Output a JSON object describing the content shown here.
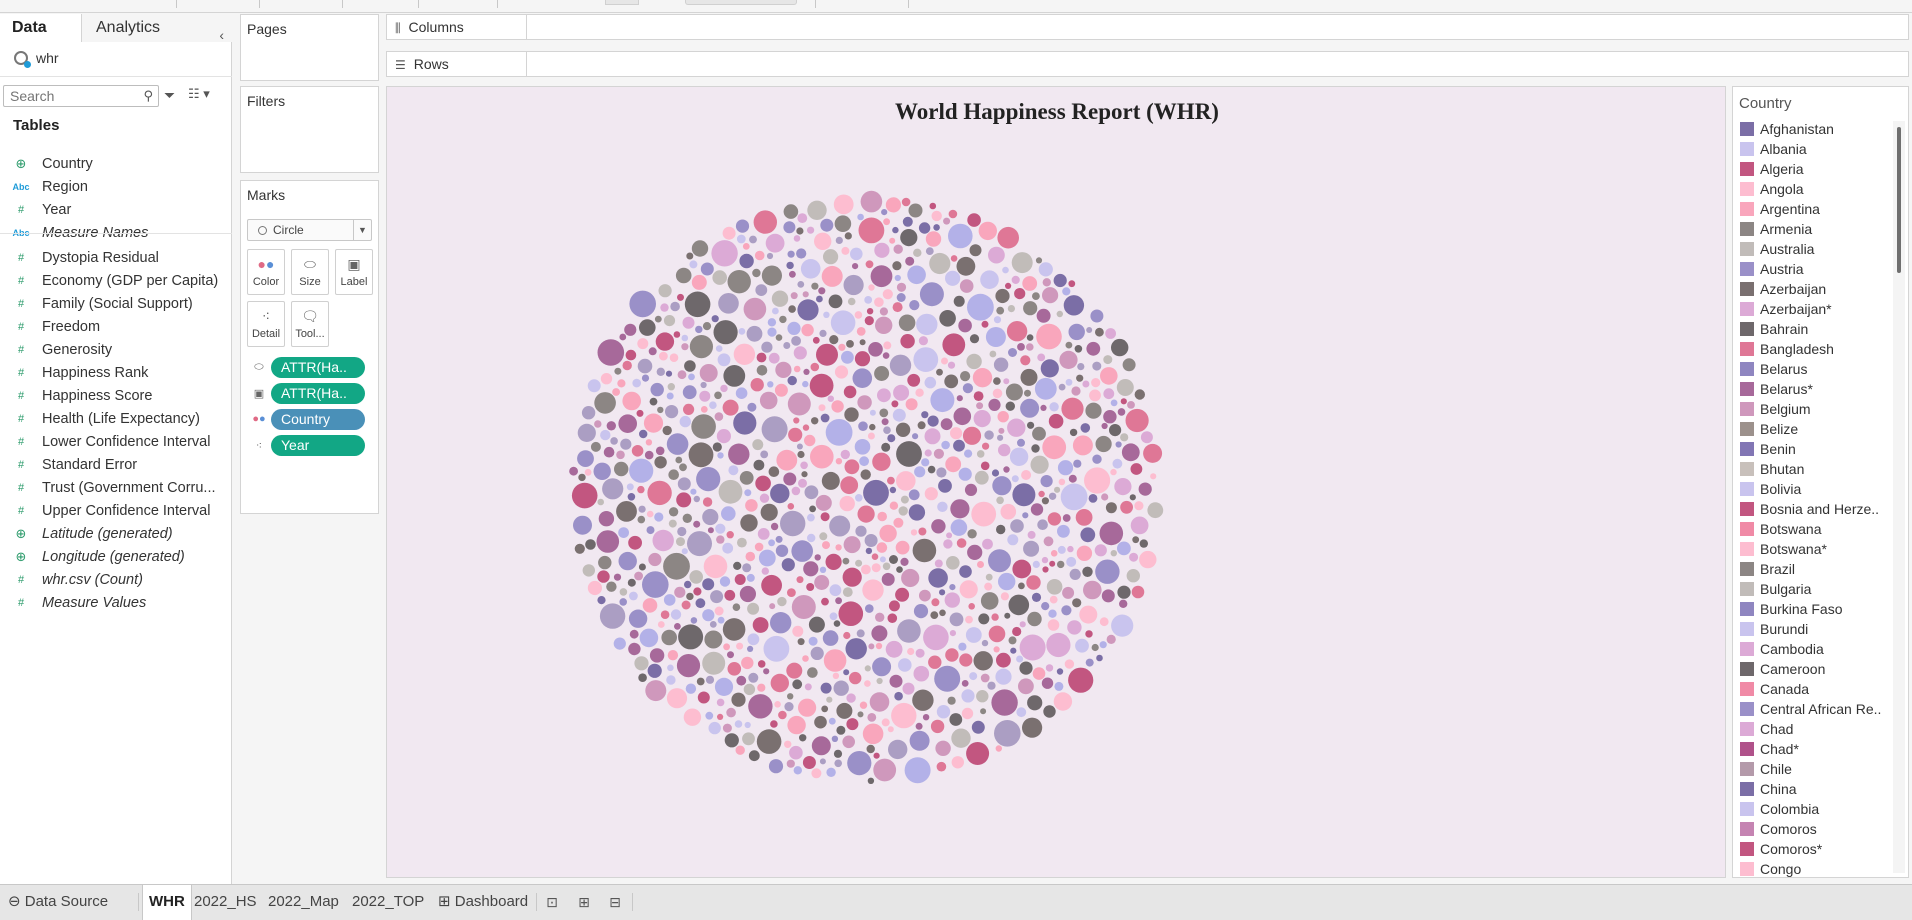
{
  "data_pane": {
    "tabs": {
      "data": "Data",
      "analytics": "Analytics"
    },
    "datasource": "whr",
    "search_placeholder": "Search",
    "tables_header": "Tables",
    "dimensions": [
      {
        "name": "Country",
        "type": "globe",
        "italic": false
      },
      {
        "name": "Region",
        "type": "abc",
        "italic": false
      },
      {
        "name": "Year",
        "type": "num",
        "italic": false
      },
      {
        "name": "Measure Names",
        "type": "abc",
        "italic": true
      }
    ],
    "measures": [
      {
        "name": "Dystopia Residual",
        "type": "num",
        "italic": false
      },
      {
        "name": "Economy (GDP per Capita)",
        "type": "num",
        "italic": false
      },
      {
        "name": "Family (Social Support)",
        "type": "num",
        "italic": false
      },
      {
        "name": "Freedom",
        "type": "num",
        "italic": false
      },
      {
        "name": "Generosity",
        "type": "num",
        "italic": false
      },
      {
        "name": "Happiness Rank",
        "type": "num",
        "italic": false
      },
      {
        "name": "Happiness Score",
        "type": "num",
        "italic": false
      },
      {
        "name": "Health (Life Expectancy)",
        "type": "num",
        "italic": false
      },
      {
        "name": "Lower Confidence Interval",
        "type": "num",
        "italic": false
      },
      {
        "name": "Standard Error",
        "type": "num",
        "italic": false
      },
      {
        "name": "Trust (Government Corru...",
        "type": "num",
        "italic": false
      },
      {
        "name": "Upper Confidence Interval",
        "type": "num",
        "italic": false
      },
      {
        "name": "Latitude (generated)",
        "type": "globe",
        "italic": true
      },
      {
        "name": "Longitude (generated)",
        "type": "globe",
        "italic": true
      },
      {
        "name": "whr.csv (Count)",
        "type": "num",
        "italic": true
      },
      {
        "name": "Measure Values",
        "type": "num",
        "italic": true
      }
    ]
  },
  "shelves": {
    "pages": "Pages",
    "filters": "Filters",
    "marks": "Marks",
    "mark_type": "Circle",
    "mark_buttons": {
      "color": "Color",
      "size": "Size",
      "label": "Label",
      "detail": "Detail",
      "tooltip": "Tool..."
    },
    "mark_pills": [
      {
        "label": "ATTR(Ha..",
        "role": "size",
        "color": "green"
      },
      {
        "label": "ATTR(Ha..",
        "role": "label",
        "color": "green"
      },
      {
        "label": "Country",
        "role": "color",
        "color": "blue"
      },
      {
        "label": "Year",
        "role": "detail",
        "color": "green"
      }
    ],
    "columns": "Columns",
    "rows": "Rows"
  },
  "viz": {
    "title": "World Happiness Report (WHR)",
    "background": "#f1e8f1",
    "palette": [
      "#7b6ea6",
      "#c9c4ee",
      "#c25680",
      "#fdbdd0",
      "#f9a6bc",
      "#8c8684",
      "#c1bcb9",
      "#9a90c8",
      "#7a7070",
      "#dcaad6",
      "#df7796",
      "#a7699a",
      "#cf98bc",
      "#b3b1e8",
      "#ab9ec3",
      "#6e686b"
    ]
  },
  "legend": {
    "title": "Country",
    "items": [
      {
        "name": "Afghanistan",
        "color": "#7b6ea6"
      },
      {
        "name": "Albania",
        "color": "#c9c4ee"
      },
      {
        "name": "Algeria",
        "color": "#c25680"
      },
      {
        "name": "Angola",
        "color": "#fdbdd0"
      },
      {
        "name": "Argentina",
        "color": "#f9a6bc"
      },
      {
        "name": "Armenia",
        "color": "#8c8684"
      },
      {
        "name": "Australia",
        "color": "#c1bcb9"
      },
      {
        "name": "Austria",
        "color": "#9a90c8"
      },
      {
        "name": "Azerbaijan",
        "color": "#7a7070"
      },
      {
        "name": "Azerbaijan*",
        "color": "#dcaad6"
      },
      {
        "name": "Bahrain",
        "color": "#6e686b"
      },
      {
        "name": "Bangladesh",
        "color": "#df7796"
      },
      {
        "name": "Belarus",
        "color": "#8f86c0"
      },
      {
        "name": "Belarus*",
        "color": "#a7699a"
      },
      {
        "name": "Belgium",
        "color": "#cf98bc"
      },
      {
        "name": "Belize",
        "color": "#9c918c"
      },
      {
        "name": "Benin",
        "color": "#8276b4"
      },
      {
        "name": "Bhutan",
        "color": "#c8c0bb"
      },
      {
        "name": "Bolivia",
        "color": "#c9c4ee"
      },
      {
        "name": "Bosnia and Herze..",
        "color": "#c25680"
      },
      {
        "name": "Botswana",
        "color": "#f08aa6"
      },
      {
        "name": "Botswana*",
        "color": "#fdbdd0"
      },
      {
        "name": "Brazil",
        "color": "#8c8684"
      },
      {
        "name": "Bulgaria",
        "color": "#c1bcb9"
      },
      {
        "name": "Burkina Faso",
        "color": "#8f86c0"
      },
      {
        "name": "Burundi",
        "color": "#c9c4ee"
      },
      {
        "name": "Cambodia",
        "color": "#dcaad6"
      },
      {
        "name": "Cameroon",
        "color": "#6e686b"
      },
      {
        "name": "Canada",
        "color": "#f08aa6"
      },
      {
        "name": "Central African Re..",
        "color": "#9a90c8"
      },
      {
        "name": "Chad",
        "color": "#dcaad6"
      },
      {
        "name": "Chad*",
        "color": "#b0528a"
      },
      {
        "name": "Chile",
        "color": "#b49aaa"
      },
      {
        "name": "China",
        "color": "#7b6ea6"
      },
      {
        "name": "Colombia",
        "color": "#c9c4ee"
      },
      {
        "name": "Comoros",
        "color": "#c584b2"
      },
      {
        "name": "Comoros*",
        "color": "#c25680"
      },
      {
        "name": "Congo",
        "color": "#fdbdd0"
      }
    ]
  },
  "bottom_tabs": {
    "datasource": "Data Source",
    "sheets": [
      "WHR",
      "2022_HS",
      "2022_Map",
      "2022_TOP"
    ],
    "dashboard": "Dashboard",
    "active": "WHR"
  }
}
